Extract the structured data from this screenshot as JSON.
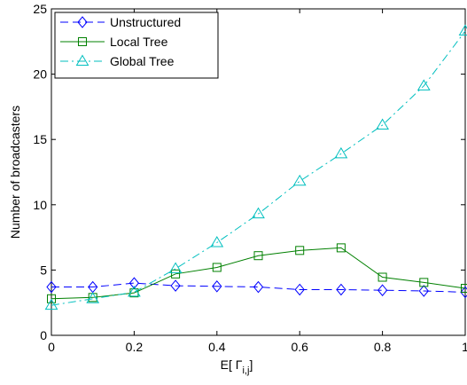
{
  "chart_data": {
    "type": "line",
    "xlabel_main": "E[ Γ",
    "xlabel_sub": "i,j",
    "xlabel_end": "]",
    "ylabel": "Number of broadcasters",
    "xlim": [
      0,
      1
    ],
    "ylim": [
      0,
      25
    ],
    "xticks": [
      0,
      0.2,
      0.4,
      0.6,
      0.8,
      1
    ],
    "xtick_labels": [
      "0",
      "0.2",
      "0.4",
      "0.6",
      "0.8",
      "1"
    ],
    "yticks": [
      0,
      5,
      10,
      15,
      20,
      25
    ],
    "ytick_labels": [
      "0",
      "5",
      "10",
      "15",
      "20",
      "25"
    ],
    "grid": false,
    "legend_position": "top-left",
    "x": [
      0,
      0.1,
      0.2,
      0.3,
      0.4,
      0.5,
      0.6,
      0.7,
      0.8,
      0.9,
      1.0
    ],
    "series": [
      {
        "name": "Unstructured",
        "color": "#0000ff",
        "marker": "diamond",
        "line_style": "dashed",
        "values": [
          3.7,
          3.7,
          4.0,
          3.8,
          3.75,
          3.7,
          3.5,
          3.5,
          3.45,
          3.4,
          3.3
        ]
      },
      {
        "name": "Local Tree",
        "color": "#008000",
        "marker": "square",
        "line_style": "solid",
        "values": [
          2.8,
          2.9,
          3.25,
          4.7,
          5.2,
          6.1,
          6.5,
          6.7,
          4.45,
          4.05,
          3.6
        ]
      },
      {
        "name": "Global Tree",
        "color": "#00bfbf",
        "marker": "triangle",
        "line_style": "dashdot",
        "values": [
          2.3,
          2.8,
          3.3,
          5.1,
          7.1,
          9.3,
          11.8,
          13.9,
          16.1,
          19.1,
          23.3
        ]
      }
    ]
  }
}
